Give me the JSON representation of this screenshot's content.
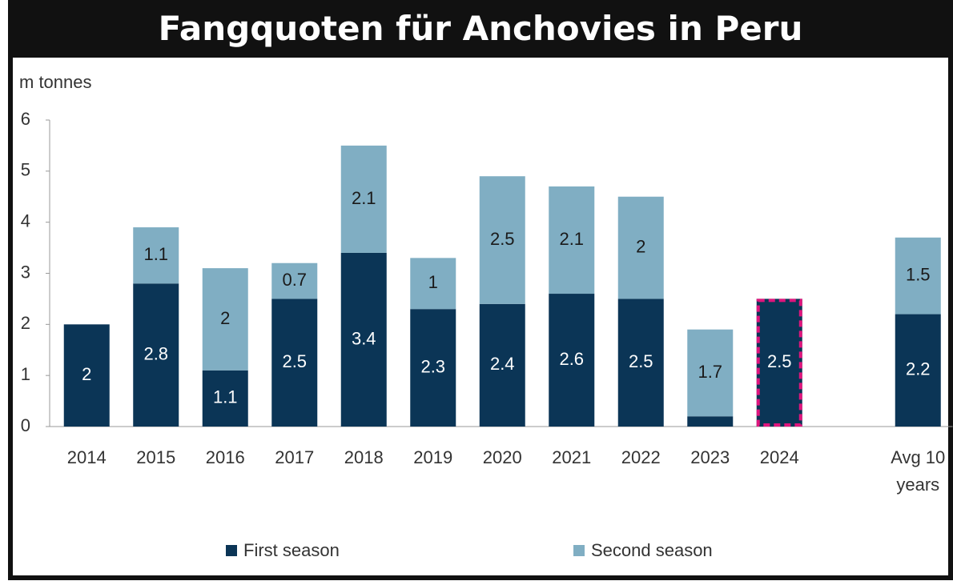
{
  "chart_data": {
    "type": "stacked_bar",
    "title": "Fangquoten für Anchovies in Peru",
    "y_axis_label": "m tonnes",
    "categories": [
      "2014",
      "2015",
      "2016",
      "2017",
      "2018",
      "2019",
      "2020",
      "2021",
      "2022",
      "2023",
      "2024",
      null,
      "Avg 10 years"
    ],
    "series": [
      {
        "name": "First season",
        "color": "#0b3556",
        "label_color": "#ffffff",
        "values": [
          2,
          2.8,
          1.1,
          2.5,
          3.4,
          2.3,
          2.4,
          2.6,
          2.5,
          0.2,
          2.5,
          null,
          2.2
        ],
        "value_labels": [
          "2",
          "2.8",
          "1.1",
          "2.5",
          "3.4",
          "2.3",
          "2.4",
          "2.6",
          "2.5",
          null,
          "2.5",
          null,
          "2.2"
        ]
      },
      {
        "name": "Second season",
        "color": "#80aec3",
        "label_color": "#1a1a1a",
        "values": [
          null,
          1.1,
          2,
          0.7,
          2.1,
          1,
          2.5,
          2.1,
          2,
          1.7,
          null,
          null,
          1.5
        ],
        "value_labels": [
          null,
          "1.1",
          "2",
          "0.7",
          "2.1",
          "1",
          "2.5",
          "2.1",
          "2",
          "1.7",
          null,
          null,
          "1.5"
        ]
      }
    ],
    "ylim": [
      0,
      6
    ],
    "yticks": [
      0,
      1,
      2,
      3,
      4,
      5,
      6
    ],
    "grid": false,
    "legend": "bottom",
    "highlight": {
      "category": "2024",
      "color": "#e0157d"
    }
  }
}
